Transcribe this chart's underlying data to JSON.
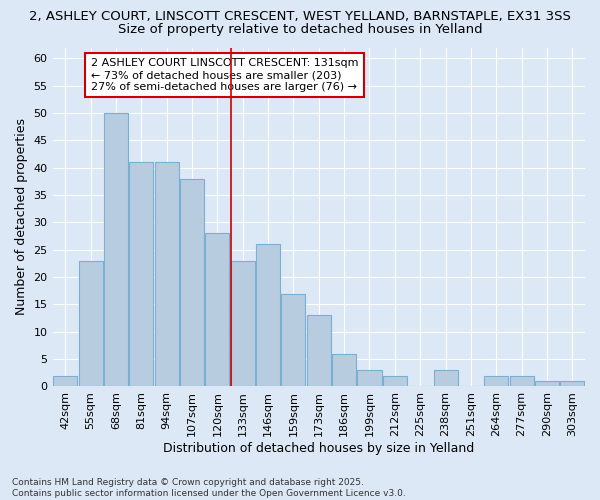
{
  "title_line1": "2, ASHLEY COURT, LINSCOTT CRESCENT, WEST YELLAND, BARNSTAPLE, EX31 3SS",
  "title_line2": "Size of property relative to detached houses in Yelland",
  "xlabel": "Distribution of detached houses by size in Yelland",
  "ylabel": "Number of detached properties",
  "categories": [
    "42sqm",
    "55sqm",
    "68sqm",
    "81sqm",
    "94sqm",
    "107sqm",
    "120sqm",
    "133sqm",
    "146sqm",
    "159sqm",
    "173sqm",
    "186sqm",
    "199sqm",
    "212sqm",
    "225sqm",
    "238sqm",
    "251sqm",
    "264sqm",
    "277sqm",
    "290sqm",
    "303sqm"
  ],
  "values": [
    2,
    23,
    50,
    41,
    41,
    38,
    28,
    23,
    26,
    17,
    13,
    6,
    3,
    2,
    0,
    3,
    0,
    2,
    2,
    1,
    1
  ],
  "bar_color": "#b8ccdf",
  "bar_edge_color": "#7aafd4",
  "vline_color": "#cc0000",
  "annotation_text": "2 ASHLEY COURT LINSCOTT CRESCENT: 131sqm\n← 73% of detached houses are smaller (203)\n27% of semi-detached houses are larger (76) →",
  "annotation_box_color": "#ffffff",
  "annotation_box_edge": "#cc0000",
  "ylim": [
    0,
    62
  ],
  "yticks": [
    0,
    5,
    10,
    15,
    20,
    25,
    30,
    35,
    40,
    45,
    50,
    55,
    60
  ],
  "background_color": "#dce8f5",
  "grid_color": "#ffffff",
  "footer": "Contains HM Land Registry data © Crown copyright and database right 2025.\nContains public sector information licensed under the Open Government Licence v3.0.",
  "title_fontsize": 9.5,
  "subtitle_fontsize": 9.5,
  "axis_label_fontsize": 9,
  "tick_fontsize": 8,
  "ann_fontsize": 8
}
